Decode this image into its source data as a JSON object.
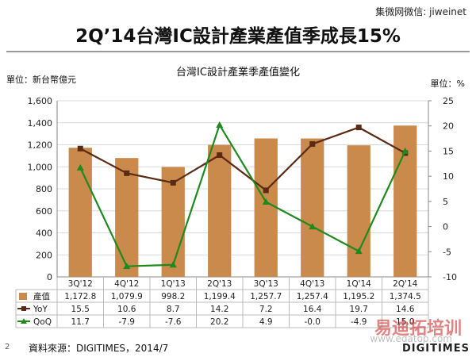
{
  "header": {
    "watermark": "集微网微信: jiweinet",
    "title": "2Q’14台灣IC設計產業產值季成長15%"
  },
  "footer": {
    "source": "資料來源：DIGITIMES，2014/7",
    "page": "2",
    "brand": "DIGITIMES",
    "watermark_cn": "易迪拓培训",
    "watermark_url": "www.edatop.com"
  },
  "colors": {
    "bar": "#C98A4B",
    "yoy": "#5B2A14",
    "qoq": "#1E8A1E",
    "grid": "#D9D9D9"
  },
  "chart_data": {
    "type": "bar",
    "title": "台灣IC設計產業季產值變化",
    "left_unit": "單位：新台幣億元",
    "right_unit": "單位：%",
    "categories": [
      "3Q'12",
      "4Q'12",
      "1Q'13",
      "2Q'13",
      "3Q'13",
      "4Q'13",
      "1Q'14",
      "2Q'14"
    ],
    "ylim": [
      0,
      1600
    ],
    "yticks": [
      "0",
      "200",
      "400",
      "600",
      "800",
      "1,000",
      "1,200",
      "1,400",
      "1,600"
    ],
    "y2lim": [
      -10,
      25
    ],
    "y2ticks": [
      "-10",
      "-5",
      "0",
      "5",
      "10",
      "15",
      "20",
      "25"
    ],
    "grid": true,
    "series": [
      {
        "name": "產值",
        "kind": "bar",
        "axis": "left",
        "values": [
          1172.8,
          1079.9,
          998.2,
          1199.4,
          1257.7,
          1257.4,
          1195.2,
          1374.5
        ],
        "labels": [
          "1,172.8",
          "1,079.9",
          "998.2",
          "1,199.4",
          "1,257.7",
          "1,257.4",
          "1,195.2",
          "1,374.5"
        ]
      },
      {
        "name": "YoY",
        "kind": "line",
        "axis": "right",
        "values": [
          15.5,
          10.6,
          8.7,
          14.2,
          7.2,
          16.4,
          19.7,
          14.6
        ],
        "labels": [
          "15.5",
          "10.6",
          "8.7",
          "14.2",
          "7.2",
          "16.4",
          "19.7",
          "14.6"
        ]
      },
      {
        "name": "QoQ",
        "kind": "line",
        "axis": "right",
        "values": [
          11.7,
          -7.9,
          -7.6,
          20.2,
          4.9,
          -0.0,
          -4.9,
          15.0
        ],
        "labels": [
          "11.7",
          "-7.9",
          "-7.6",
          "20.2",
          "4.9",
          "-0.0",
          "-4.9",
          "15.0"
        ]
      }
    ]
  }
}
